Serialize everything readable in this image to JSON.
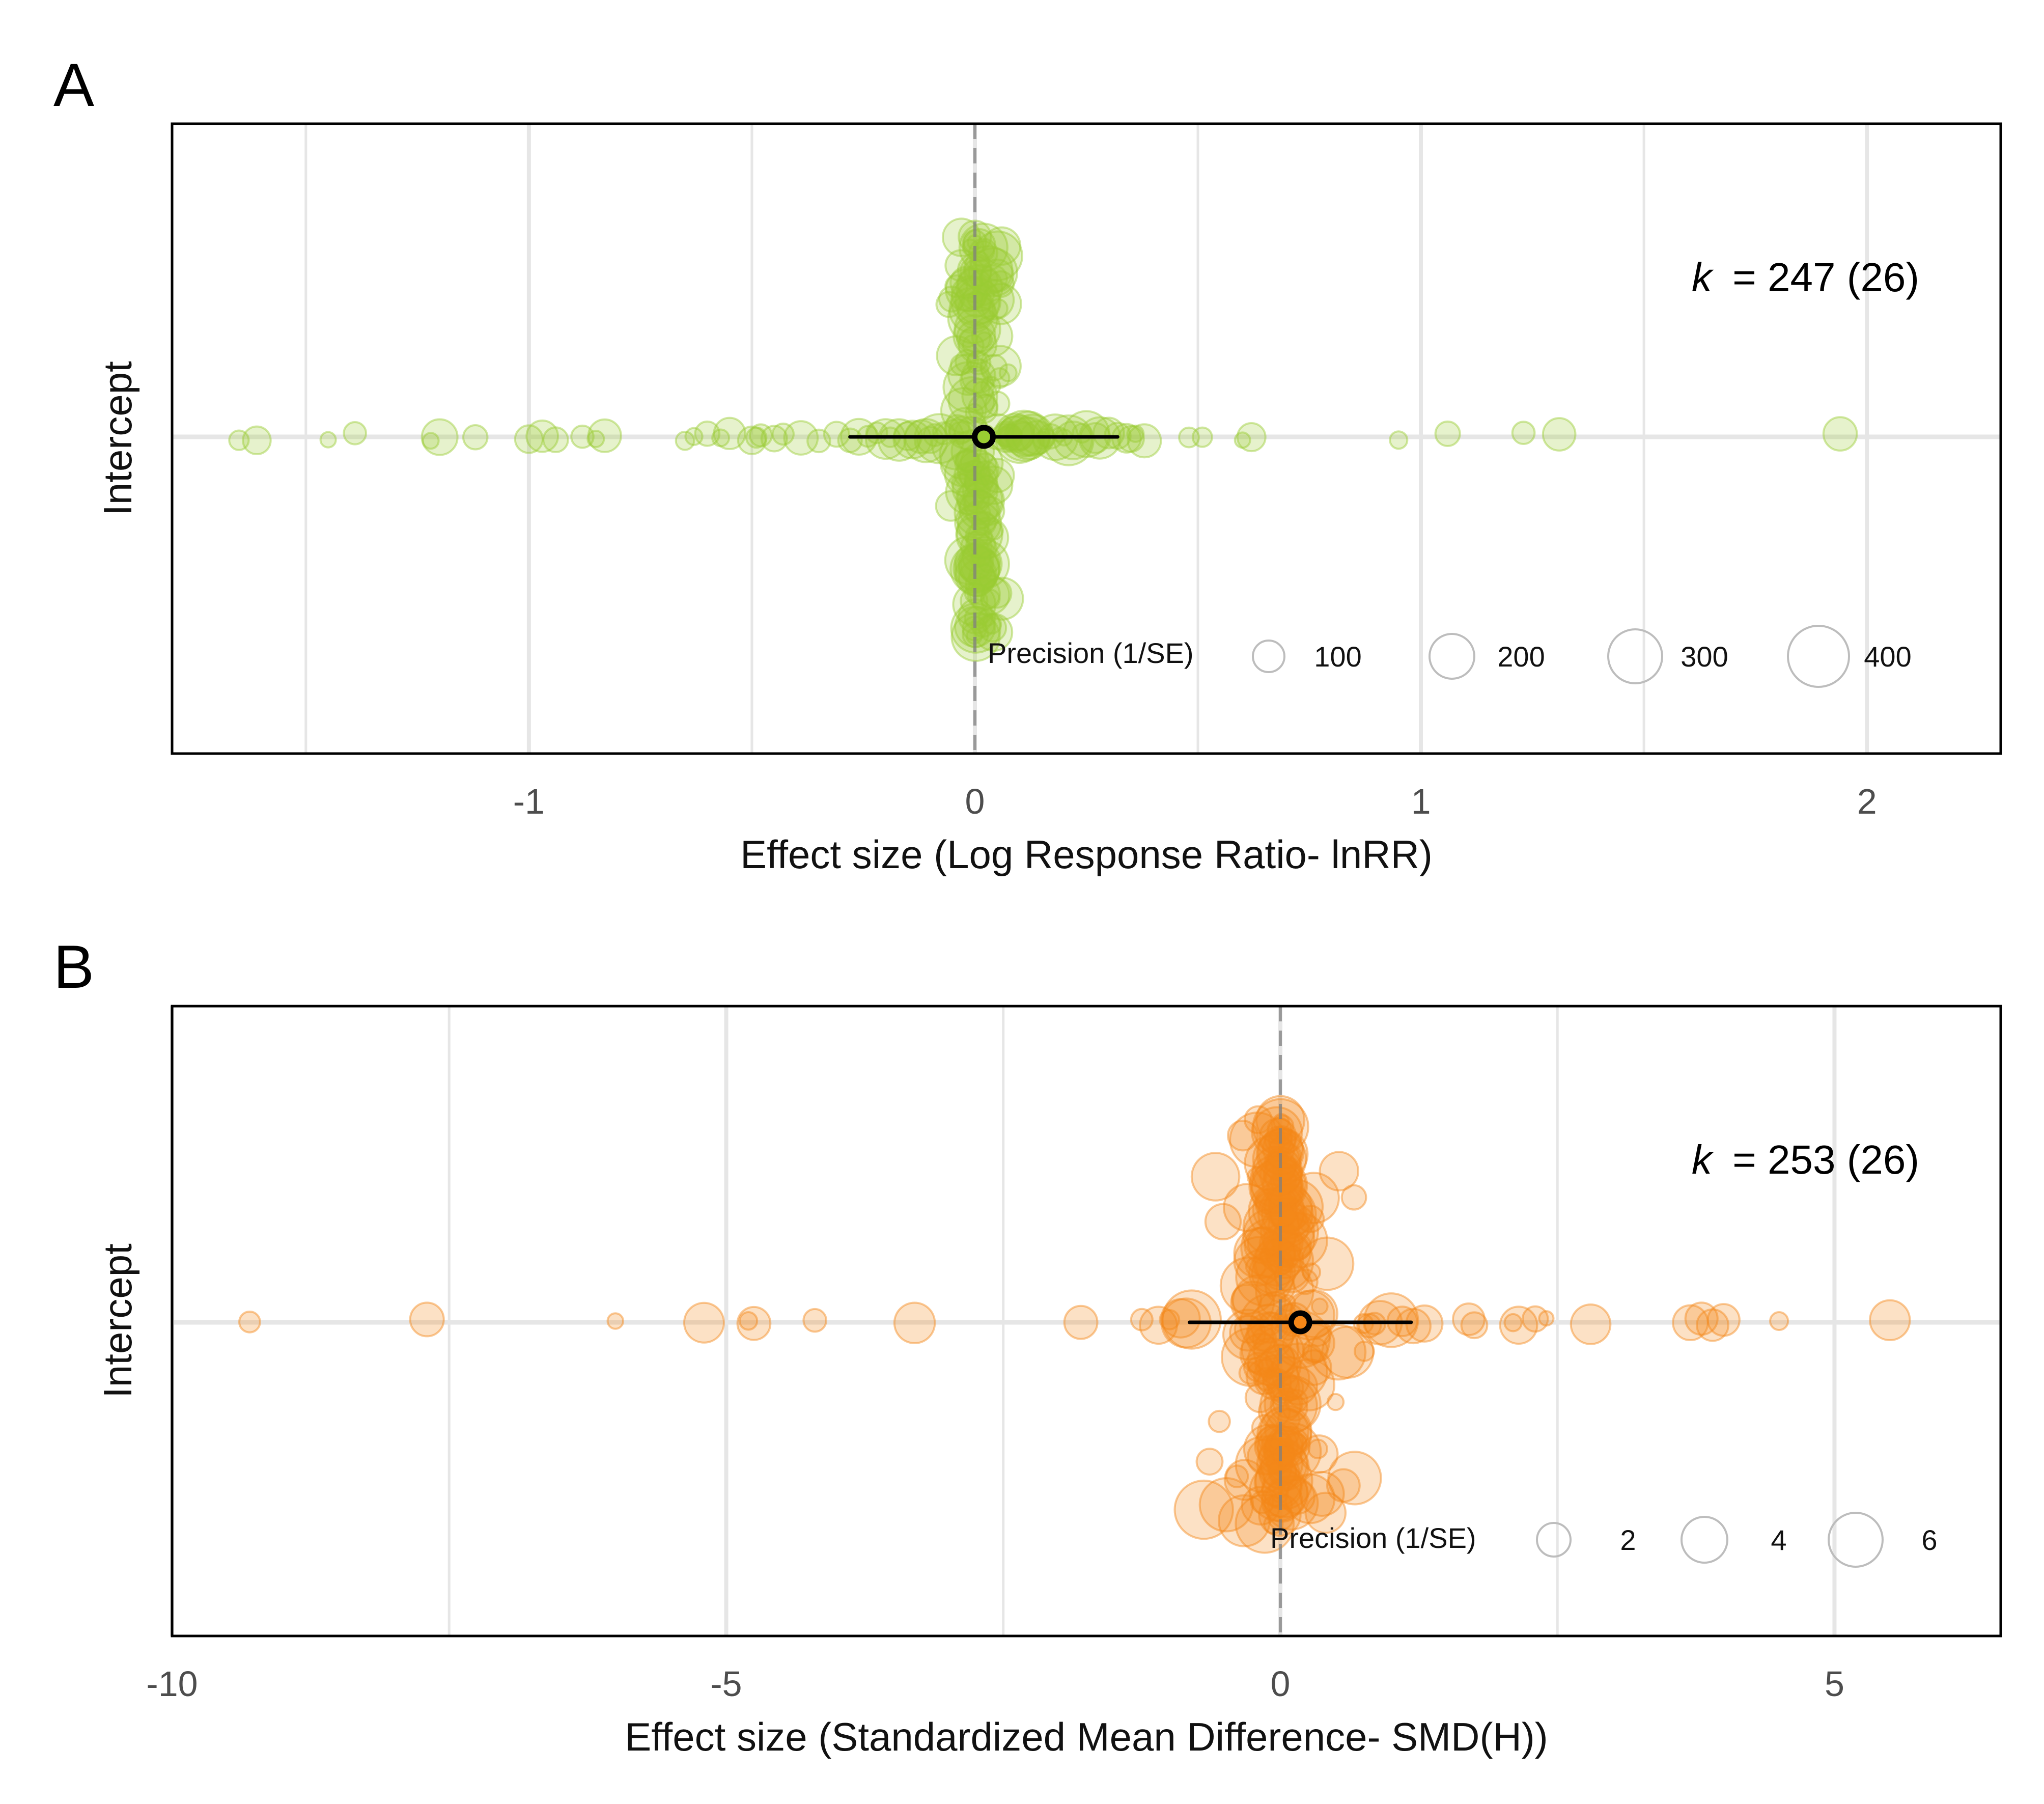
{
  "figure": {
    "panels": [
      "A",
      "B"
    ]
  },
  "chart_data": [
    {
      "panel": "A",
      "type": "scatter",
      "title": "",
      "xlabel": "Effect size (Log Response Ratio- lnRR)",
      "ylabel": "Intercept",
      "xlim": [
        -1.8,
        2.3
      ],
      "xticks": [
        -1,
        0,
        1,
        2
      ],
      "tick_labels": [
        "-1",
        "0",
        "1",
        "2"
      ],
      "grid": true,
      "reference_line_x": 0,
      "annotation": {
        "k_symbol": "k",
        "text": "= 247 (26)"
      },
      "estimate": {
        "mean": 0.02,
        "ci_low": -0.28,
        "ci_high": 0.32
      },
      "point_color": "#9ACD32",
      "orchard_spread": [
        [
          0.96,
          0.0
        ],
        [
          0.9,
          0.02
        ],
        [
          0.82,
          0.05
        ],
        [
          0.7,
          0.08
        ],
        [
          0.6,
          0.11
        ],
        [
          0.5,
          0.18
        ],
        [
          0.38,
          0.3
        ],
        [
          0.22,
          0.55
        ],
        [
          0.1,
          0.8
        ],
        [
          0.0,
          1.0
        ],
        [
          -0.1,
          0.8
        ],
        [
          -0.25,
          0.48
        ],
        [
          -0.42,
          0.3
        ],
        [
          -0.55,
          0.22
        ],
        [
          -0.7,
          0.18
        ],
        [
          -0.82,
          0.12
        ],
        [
          -0.92,
          0.06
        ],
        [
          -1.0,
          0.02
        ]
      ],
      "effect_sizes": [
        -1.65,
        -1.61,
        -1.45,
        -1.39,
        -1.22,
        -1.2,
        -1.12,
        -1.0,
        -0.97,
        -0.94,
        -0.88,
        -0.85,
        -0.83,
        -0.65,
        -0.63,
        -0.6,
        -0.57,
        -0.55,
        -0.5,
        -0.49,
        -0.48,
        -0.45,
        -0.43,
        -0.39,
        -0.35,
        -0.31,
        -0.28,
        -0.26,
        -0.24,
        -0.22,
        -0.2,
        -0.19,
        -0.17,
        -0.15,
        -0.14,
        -0.12,
        -0.11,
        -0.1,
        -0.09,
        -0.08,
        -0.07,
        -0.06,
        -0.05,
        -0.05,
        -0.04,
        -0.04,
        -0.03,
        -0.03,
        -0.02,
        -0.02,
        -0.02,
        -0.01,
        -0.01,
        -0.01,
        -0.01,
        0.0,
        0.0,
        0.0,
        0.0,
        0.0,
        0.0,
        0.0,
        0.0,
        0.0,
        0.0,
        0.0,
        0.0,
        0.0,
        0.0,
        0.0,
        0.0,
        0.0,
        0.0,
        0.0,
        0.0,
        0.0,
        0.0,
        0.0,
        0.0,
        0.0,
        0.0,
        0.0,
        0.0,
        0.0,
        0.0,
        0.0,
        0.0,
        0.0,
        0.0,
        0.0,
        0.0,
        0.0,
        0.0,
        0.0,
        0.0,
        0.0,
        0.0,
        0.0,
        0.0,
        0.0,
        0.0,
        0.0,
        0.0,
        0.0,
        0.0,
        0.0,
        0.0,
        0.0,
        0.0,
        0.0,
        0.0,
        0.0,
        0.0,
        0.0,
        0.0,
        0.0,
        0.0,
        0.0,
        0.0,
        0.0,
        0.0,
        0.0,
        0.0,
        0.01,
        0.01,
        0.01,
        0.01,
        0.01,
        0.01,
        0.01,
        0.01,
        0.01,
        0.01,
        0.01,
        0.01,
        0.01,
        0.01,
        0.01,
        0.02,
        0.02,
        0.02,
        0.02,
        0.02,
        0.02,
        0.02,
        0.02,
        0.02,
        0.02,
        0.02,
        0.02,
        0.02,
        0.03,
        0.03,
        0.03,
        0.03,
        0.03,
        0.03,
        0.03,
        0.03,
        0.03,
        0.03,
        0.04,
        0.04,
        0.04,
        0.04,
        0.04,
        0.04,
        0.04,
        0.05,
        0.05,
        0.05,
        0.05,
        0.05,
        0.06,
        0.06,
        0.06,
        0.06,
        0.06,
        0.07,
        0.07,
        0.07,
        0.08,
        0.08,
        0.08,
        0.09,
        0.09,
        0.1,
        0.1,
        0.11,
        0.11,
        0.12,
        0.12,
        0.13,
        0.14,
        0.15,
        0.16,
        0.17,
        0.18,
        0.19,
        0.2,
        0.21,
        0.22,
        0.24,
        0.25,
        0.27,
        0.28,
        0.3,
        0.32,
        0.34,
        0.35,
        0.36,
        0.38,
        0.48,
        0.51,
        0.6,
        0.62,
        0.95,
        1.06,
        1.23,
        1.31,
        1.94,
        -0.03,
        0.03,
        -0.02,
        0.02,
        -0.04,
        0.04,
        0.05,
        -0.05,
        0.06,
        0.02,
        -0.01,
        0.01,
        0.0,
        -0.02,
        0.02,
        0.04,
        -0.03,
        0.03,
        0.01,
        -0.01,
        0.05,
        0.0,
        0.0,
        0.01,
        0.02
      ],
      "legend": {
        "title": "Precision (1/SE)",
        "position": "bottom-right",
        "entries": [
          "100",
          "200",
          "300",
          "400"
        ]
      }
    },
    {
      "panel": "B",
      "type": "scatter",
      "title": "",
      "xlabel": "Effect size (Standardized Mean Difference- SMD(H))",
      "ylabel": "Intercept",
      "xlim": [
        -10,
        6.5
      ],
      "xticks": [
        -10,
        -5,
        0,
        5
      ],
      "tick_labels": [
        "-10",
        "-5",
        "0",
        "5"
      ],
      "grid": true,
      "reference_line_x": 0,
      "annotation": {
        "k_symbol": "k",
        "text": "= 253 (26)"
      },
      "estimate": {
        "mean": 0.18,
        "ci_low": -0.82,
        "ci_high": 1.18
      },
      "point_color": "#F58718",
      "orchard_spread": [
        [
          0.96,
          0.0
        ],
        [
          0.9,
          0.02
        ],
        [
          0.82,
          0.05
        ],
        [
          0.72,
          0.1
        ],
        [
          0.58,
          0.18
        ],
        [
          0.45,
          0.3
        ],
        [
          0.3,
          0.55
        ],
        [
          0.15,
          0.82
        ],
        [
          0.0,
          1.0
        ],
        [
          -0.15,
          0.85
        ],
        [
          -0.3,
          0.6
        ],
        [
          -0.45,
          0.32
        ],
        [
          -0.6,
          0.15
        ],
        [
          -0.75,
          0.07
        ],
        [
          -0.88,
          0.03
        ],
        [
          -0.98,
          0.0
        ]
      ],
      "effect_sizes": [
        -9.3,
        -7.7,
        -6.0,
        -5.2,
        -4.8,
        -4.75,
        -4.2,
        -3.3,
        -1.8,
        -1.25,
        -1.1,
        -1.0,
        -0.9,
        -0.85,
        -0.8,
        -0.7,
        -0.65,
        -0.6,
        -0.55,
        -0.5,
        -0.45,
        -0.4,
        -0.38,
        -0.35,
        -0.33,
        -0.3,
        -0.28,
        -0.26,
        -0.24,
        -0.22,
        -0.2,
        -0.19,
        -0.18,
        -0.17,
        -0.16,
        -0.15,
        -0.14,
        -0.13,
        -0.12,
        -0.11,
        -0.1,
        -0.1,
        -0.09,
        -0.09,
        -0.08,
        -0.08,
        -0.07,
        -0.07,
        -0.06,
        -0.06,
        -0.05,
        -0.05,
        -0.05,
        -0.04,
        -0.04,
        -0.04,
        -0.03,
        -0.03,
        -0.03,
        -0.02,
        -0.02,
        -0.02,
        -0.02,
        -0.01,
        -0.01,
        -0.01,
        -0.01,
        0.0,
        0.0,
        0.0,
        0.0,
        0.0,
        0.0,
        0.0,
        0.0,
        0.0,
        0.0,
        0.0,
        0.0,
        0.0,
        0.0,
        0.0,
        0.0,
        0.0,
        0.0,
        0.0,
        0.0,
        0.0,
        0.0,
        0.0,
        0.0,
        0.0,
        0.0,
        0.0,
        0.0,
        0.0,
        0.0,
        0.0,
        0.0,
        0.0,
        0.0,
        0.0,
        0.0,
        0.0,
        0.0,
        0.0,
        0.0,
        0.0,
        0.0,
        0.0,
        0.0,
        0.0,
        0.0,
        0.0,
        0.0,
        0.0,
        0.01,
        0.01,
        0.01,
        0.01,
        0.01,
        0.01,
        0.02,
        0.02,
        0.02,
        0.02,
        0.02,
        0.03,
        0.03,
        0.03,
        0.03,
        0.04,
        0.04,
        0.04,
        0.05,
        0.05,
        0.05,
        0.06,
        0.06,
        0.07,
        0.07,
        0.08,
        0.08,
        0.09,
        0.09,
        0.1,
        0.1,
        0.11,
        0.12,
        0.13,
        0.14,
        0.15,
        0.16,
        0.17,
        0.18,
        0.19,
        0.2,
        0.22,
        0.24,
        0.26,
        0.28,
        0.3,
        0.32,
        0.35,
        0.38,
        0.4,
        0.42,
        0.45,
        0.48,
        0.5,
        0.55,
        0.6,
        0.65,
        0.7,
        0.75,
        0.8,
        0.85,
        0.9,
        1.0,
        1.1,
        1.2,
        1.3,
        1.7,
        1.75,
        2.1,
        2.15,
        2.3,
        2.4,
        2.8,
        3.7,
        3.8,
        3.9,
        4.0,
        4.5,
        5.5,
        -0.02,
        0.02,
        -0.03,
        0.03,
        0.0,
        0.01,
        -0.01,
        0.04,
        -0.04,
        0.05,
        -0.05,
        0.06,
        -0.06,
        0.02,
        -0.02,
        0.0,
        0.0,
        0.03,
        -0.03,
        0.01,
        -0.01,
        0.07,
        -0.07,
        0.0,
        0.0,
        0.02,
        -0.02,
        0.04,
        -0.04,
        0.01,
        -0.01,
        0.05,
        -0.05,
        0.0,
        0.03,
        -0.03,
        0.02,
        -0.02,
        0.0,
        0.01,
        0.0,
        0.04,
        -0.04,
        0.0,
        0.02,
        -0.02,
        0.01,
        -0.01,
        0.0,
        0.03,
        -0.03,
        0.0,
        0.0,
        0.02,
        -0.02,
        0.01,
        -0.01
      ],
      "legend": {
        "title": "Precision (1/SE)",
        "position": "bottom-right",
        "entries": [
          "2",
          "4",
          "6"
        ]
      }
    }
  ]
}
